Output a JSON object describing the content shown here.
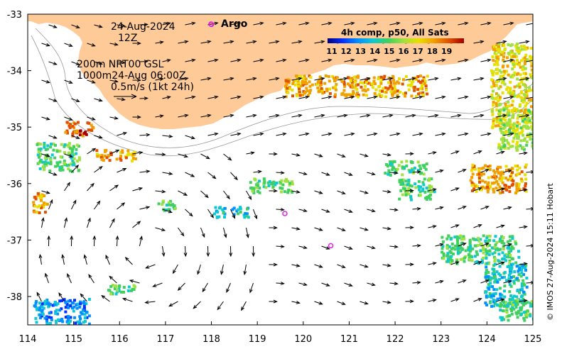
{
  "map": {
    "date": "24-Aug-2024",
    "hour": "12Z",
    "legend_argo": "Argo",
    "info_line1": "200m  NRT00 GSL",
    "info_line2": "1000m24-Aug 06:00Z",
    "info_line3": "0.5m/s (1kt 24h)",
    "colorbar_title": "4h comp, p50, All Sats",
    "colorbar_ticks": [
      "11",
      "12",
      "13",
      "14",
      "15",
      "16",
      "17",
      "18",
      "19"
    ],
    "colorbar_colors": [
      "#00007f",
      "#0030ff",
      "#0090ff",
      "#10c8d0",
      "#40d060",
      "#a0e040",
      "#e8e000",
      "#f0a000",
      "#e05000",
      "#a00000"
    ],
    "credit": "© IMOS 27-Aug-2024 15:11 Hobart",
    "x_ticks": [
      "114",
      "115",
      "116",
      "117",
      "118",
      "119",
      "120",
      "121",
      "122",
      "123",
      "124",
      "125"
    ],
    "y_ticks": [
      "-33",
      "-34",
      "-35",
      "-36",
      "-37",
      "-38"
    ],
    "argo_floats": [
      {
        "lon": 118.0,
        "lat": -33.18
      },
      {
        "lon": 119.6,
        "lat": -36.53
      },
      {
        "lon": 120.6,
        "lat": -37.1
      }
    ],
    "land_color": "#fdca98",
    "argo_color": "#e020e0"
  }
}
